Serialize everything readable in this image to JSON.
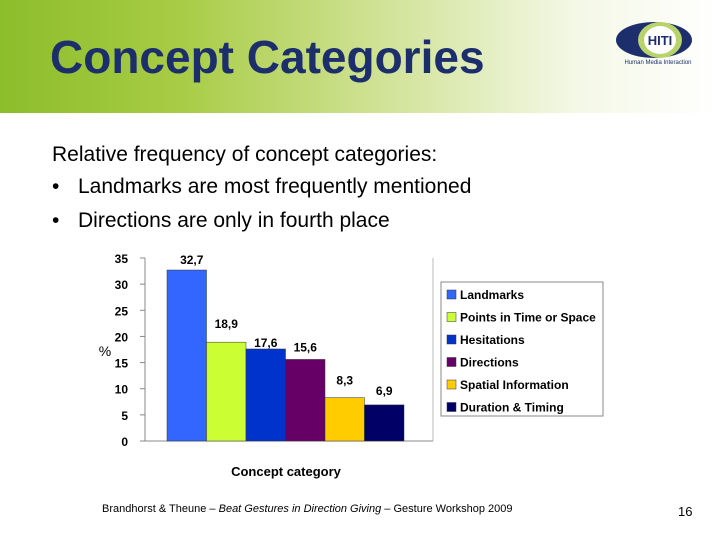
{
  "slide": {
    "title": "Concept Categories",
    "intro": "Relative frequency of concept categories:",
    "bullets": [
      "Landmarks are most frequently mentioned",
      "Directions are only in fourth place"
    ],
    "bullet_char": "•",
    "logo_text": "HITI",
    "logo_caption": "Human Media Interaction",
    "footer_prefix": "Brandhorst & Theune – ",
    "footer_italic": "Beat Gestures in Direction Giving",
    "footer_suffix": " – Gesture Workshop 2009",
    "page_number": "16"
  },
  "chart_data": {
    "type": "bar",
    "title": "",
    "xlabel": "Concept category",
    "ylabel": "%",
    "ylim": [
      0,
      35
    ],
    "yticks": [
      "0",
      "5",
      "10",
      "15",
      "20",
      "25",
      "30",
      "35"
    ],
    "grid": false,
    "legend_position": "right",
    "series": [
      {
        "name": "Landmarks",
        "value": 32.7,
        "label": "32,7",
        "color": "#3366ff"
      },
      {
        "name": "Points in Time or Space",
        "value": 18.9,
        "label": "18,9",
        "color": "#ccff33"
      },
      {
        "name": "Hesitations",
        "value": 17.6,
        "label": "17,6",
        "color": "#0033cc"
      },
      {
        "name": "Directions",
        "value": 15.6,
        "label": "15,6",
        "color": "#660066"
      },
      {
        "name": "Spatial Information",
        "value": 8.3,
        "label": "8,3",
        "color": "#ffcc00"
      },
      {
        "name": "Duration & Timing",
        "value": 6.9,
        "label": "6,9",
        "color": "#000066"
      }
    ]
  }
}
